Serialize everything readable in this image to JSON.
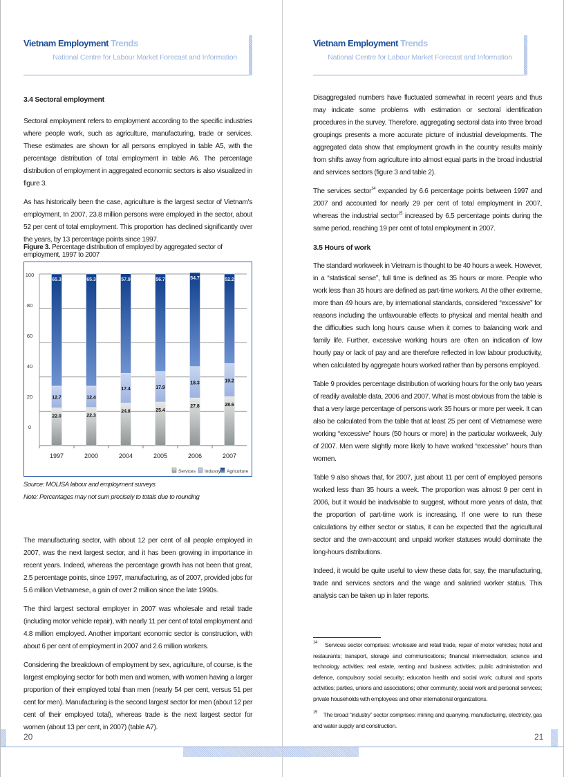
{
  "header": {
    "title_main": "Vietnam Employment",
    "title_accent": "Trends",
    "subtitle": "National Centre for Labour Market Forecast and Information"
  },
  "left": {
    "section_title": "3.4  Sectoral employment",
    "paragraphs_top": [
      "Sectoral employment refers to employment according to the specific industries where people work, such as agriculture, manufacturing, trade or services. These estimates are shown for all persons employed in table A5, with the percentage distribution of total employment in table A6. The percentage distribution of employment in aggregated economic sectors is also visualized in figure 3.",
      "As has historically been the case, agriculture is the largest sector of Vietnam's employment. In 2007, 23.8 million persons were employed in the sector, about 52 per cent of total employment. This proportion has declined significantly over the years, by 13 percentage points since 1997."
    ],
    "figure_label": "Figure 3.",
    "figure_caption": "Percentage distribution of employed by aggregated sector of employment, 1997 to 2007",
    "source": "Source: MOLISA labour and employment surveys",
    "note": "Note: Percentages may not sum precisely to totals due to rounding",
    "paragraphs_bottom": [
      "The manufacturing sector, with about 12 per cent of all people employed in 2007, was the next largest sector, and it has been growing in importance in recent years. Indeed, whereas the percentage growth has not been that great, 2.5 percentage points, since 1997, manufacturing, as of 2007, provided jobs for 5.6 million Vietnamese, a gain of over 2 million since the late 1990s.",
      "The third largest sectoral employer in 2007 was wholesale and retail trade (including motor vehicle repair), with nearly 11 per cent of total employment and 4.8 million employed. Another important economic sector is construction, with about 6 per cent of employment in 2007 and 2.6 million workers.",
      "Considering the breakdown of employment by sex, agriculture, of course, is the largest employing sector for both men and women, with women having a larger proportion of their employed total than men (nearly 54 per cent, versus 51 per cent for men). Manufacturing is the second largest sector for men (about 12 per cent of their employed total), whereas trade is the next largest sector for women (about 13 per cent, in 2007) (table A7)."
    ],
    "page_number": "20"
  },
  "chart_data": {
    "type": "bar",
    "stacked": true,
    "categories": [
      "1997",
      "2000",
      "2004",
      "2005",
      "2006",
      "2007"
    ],
    "series": [
      {
        "name": "Services",
        "values": [
          22.0,
          22.3,
          24.8,
          25.4,
          27.8,
          28.6
        ],
        "color": "#b8bcbc"
      },
      {
        "name": "Industry",
        "values": [
          12.7,
          12.4,
          17.4,
          17.9,
          18.3,
          19.2
        ],
        "color": "#a9bde6"
      },
      {
        "name": "Agriculture",
        "values": [
          65.3,
          65.3,
          57.9,
          56.7,
          54.7,
          52.2
        ],
        "color": "#2e5fae"
      }
    ],
    "y_ticks": [
      "100",
      "80",
      "60",
      "40",
      "20",
      "0"
    ],
    "ylim": [
      0,
      100
    ],
    "grid": true,
    "legend": "bottom-right"
  },
  "right": {
    "paragraphs_top": [
      "Disaggregated numbers have fluctuated somewhat in recent years and thus may indicate some problems with estimation or sectoral identification procedures in the survey. Therefore, aggregating sectoral data into three broad groupings presents a more accurate picture of industrial developments. The aggregated data show that employment growth in the country results mainly from shifts away from agriculture into almost equal parts in the broad industrial and services sectors (figure 3 and table 2)."
    ],
    "p2_a": "The services sector",
    "p2_sup1": "14",
    "p2_b": " expanded by 6.6 percentage points between 1997 and 2007 and accounted for nearly 29 per cent of total employment in 2007, whereas the industrial sector",
    "p2_sup2": "15",
    "p2_c": " increased by 6.5 percentage points during the same period, reaching 19 per cent of total employment in 2007.",
    "section_title": "3.5  Hours of work",
    "paragraphs_bottom": [
      "The standard workweek in Vietnam is thought to be 40 hours a week. However, in a “statistical sense”, full time is defined as 35 hours or more. People who work less than 35 hours are defined as part-time workers. At the other extreme, more than 49 hours are, by international standards, considered “excessive” for reasons including the unfavourable effects to physical and mental health and the difficulties such long hours cause when it comes to balancing work and family life. Further, excessive working hours are often an indication of low hourly pay or lack of pay and are therefore reflected in low labour productivity, when calculated by aggregate hours worked rather than by persons employed.",
      "Table 9 provides percentage distribution of working hours for the only two years of readily available data, 2006 and 2007. What is most obvious from the table is that a very large percentage of persons work 35 hours or more per week. It can also be calculated from the table that at least 25 per cent of Vietnamese were working “excessive” hours (50 hours or more) in the particular workweek, July of 2007. Men were slightly more likely to have worked “excessive” hours than women.",
      "Table 9 also shows that, for 2007, just about 11 per cent of employed persons worked less than 35 hours a week. The proportion was almost 9 per cent in 2006, but it would be inadvisable to suggest, without more years of data, that the proportion of part-time work is increasing. If one were to run these calculations by either sector or status, it can be expected that the agricultural sector and the own-account and unpaid worker statuses would dominate the long-hours distributions.",
      "Indeed, it would be quite useful to view these data for, say, the manufacturing, trade and services sectors and the wage and salaried worker status. This analysis can be taken up in later reports."
    ],
    "footnotes": [
      {
        "num": "14",
        "text": "Services sector comprises: wholesale and retail trade, repair of motor vehicles; hotel and restaurants; transport, storage and communications; financial intermediation; science and technology activities; real estate, renting and business activities; public administration and defence, compulsory social security; education health and social work; cultural and sports activities; parties, unions and associations; other community, social work and personal services; private households with employees and other international organizations."
      },
      {
        "num": "15",
        "text": "The broad “industry” sector comprises: mining and quarrying, manufacturing, electricity, gas and water supply and construction."
      }
    ],
    "page_number": "21"
  }
}
